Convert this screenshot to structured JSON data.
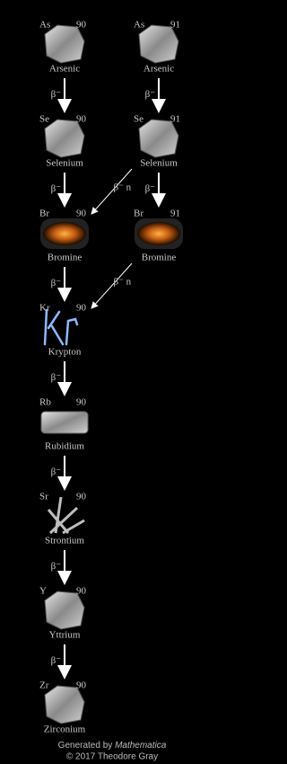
{
  "nodes": [
    {
      "symbol": "As",
      "mass": 90,
      "name": "Arsenic"
    },
    {
      "symbol": "As",
      "mass": 91,
      "name": "Arsenic"
    },
    {
      "symbol": "Se",
      "mass": 90,
      "name": "Selenium"
    },
    {
      "symbol": "Se",
      "mass": 91,
      "name": "Selenium"
    },
    {
      "symbol": "Br",
      "mass": 90,
      "name": "Bromine"
    },
    {
      "symbol": "Br",
      "mass": 91,
      "name": "Bromine"
    },
    {
      "symbol": "Kr",
      "mass": 90,
      "name": "Krypton"
    },
    {
      "symbol": "Rb",
      "mass": 90,
      "name": "Rubidium"
    },
    {
      "symbol": "Sr",
      "mass": 90,
      "name": "Strontium"
    },
    {
      "symbol": "Y",
      "mass": 90,
      "name": "Yttrium"
    },
    {
      "symbol": "Zr",
      "mass": 90,
      "name": "Zirconium"
    }
  ],
  "edges": [
    {
      "label": "β⁻"
    },
    {
      "label": "β⁻"
    },
    {
      "label": "β⁻"
    },
    {
      "label": "β⁻"
    },
    {
      "label": "β⁻ n"
    },
    {
      "label": "β⁻"
    },
    {
      "label": "β⁻ n"
    },
    {
      "label": "β⁻"
    },
    {
      "label": "β⁻"
    },
    {
      "label": "β⁻"
    },
    {
      "label": "β⁻"
    }
  ],
  "footer": {
    "generated": "Generated by",
    "software": "Mathematica",
    "copyright": "© 2017 Theodore Gray"
  }
}
